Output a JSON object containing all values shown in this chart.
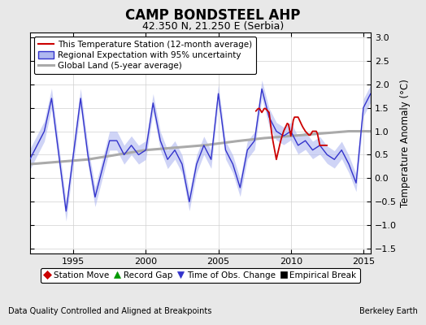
{
  "title": "CAMP BONDSTEEL AHP",
  "subtitle": "42.350 N, 21.250 E (Serbia)",
  "ylabel": "Temperature Anomaly (°C)",
  "xlabel_left": "Data Quality Controlled and Aligned at Breakpoints",
  "xlabel_right": "Berkeley Earth",
  "xlim": [
    1992.0,
    2015.5
  ],
  "ylim": [
    -1.6,
    3.1
  ],
  "yticks": [
    -1.5,
    -1.0,
    -0.5,
    0.0,
    0.5,
    1.0,
    1.5,
    2.0,
    2.5,
    3.0
  ],
  "xticks": [
    1995,
    2000,
    2005,
    2010,
    2015
  ],
  "background_color": "#e8e8e8",
  "plot_bg_color": "#ffffff",
  "legend_labels": [
    "This Temperature Station (12-month average)",
    "Regional Expectation with 95% uncertainty",
    "Global Land (5-year average)"
  ],
  "legend_colors": [
    "#cc0000",
    "#3333cc",
    "#aaaaaa"
  ],
  "legend_fill_color": "#b0b8f0",
  "marker_legend": [
    "Station Move",
    "Record Gap",
    "Time of Obs. Change",
    "Empirical Break"
  ],
  "marker_colors": [
    "#cc0000",
    "#009900",
    "#3333cc",
    "#000000"
  ],
  "marker_shapes": [
    "D",
    "^",
    "v",
    "s"
  ],
  "grid_color": "#d0d0d0",
  "title_fontsize": 12,
  "subtitle_fontsize": 9,
  "tick_fontsize": 8,
  "legend_fontsize": 7.5
}
